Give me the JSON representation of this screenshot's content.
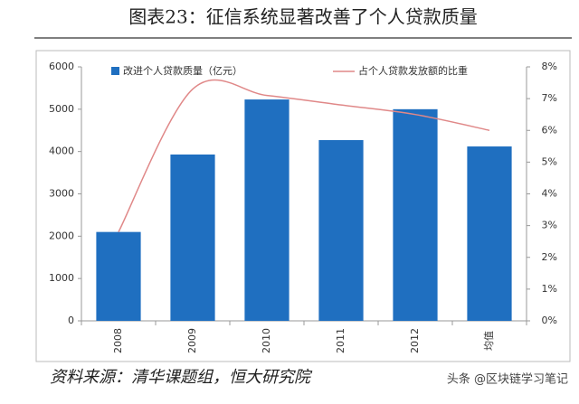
{
  "chart_data": {
    "type": "bar_line",
    "title": "图表23：征信系统显著改善了个人贷款质量",
    "source": "资料来源：清华课题组，恒大研究院",
    "categories": [
      "2008",
      "2009",
      "2010",
      "2011",
      "2012",
      "均值"
    ],
    "series": [
      {
        "name": "改进个人贷款质量（亿元）",
        "color": "#1f6fc0",
        "values": [
          2100,
          3930,
          5230,
          4270,
          5000,
          4120
        ]
      },
      {
        "name": "占个人贷款发放额的比重",
        "color": "#e08888",
        "axis": "y2",
        "values": [
          2.8,
          7.3,
          7.1,
          6.8,
          6.5,
          6.0
        ]
      }
    ],
    "ylim": [
      0,
      6000
    ],
    "yticks": [
      0,
      1000,
      2000,
      3000,
      4000,
      5000,
      6000
    ],
    "y2lim": [
      0,
      8
    ],
    "y2ticks": [
      {
        "value": 0,
        "label": "0%"
      },
      {
        "value": 1,
        "label": "1%"
      },
      {
        "value": 2,
        "label": "2%"
      },
      {
        "value": 3,
        "label": "3%"
      },
      {
        "value": 4,
        "label": "4%"
      },
      {
        "value": 5,
        "label": "5%"
      },
      {
        "value": 6,
        "label": "6%"
      },
      {
        "value": 7,
        "label": "7%"
      },
      {
        "value": 8,
        "label": "8%"
      }
    ]
  },
  "watermark": "头条 @区块链学习笔记"
}
